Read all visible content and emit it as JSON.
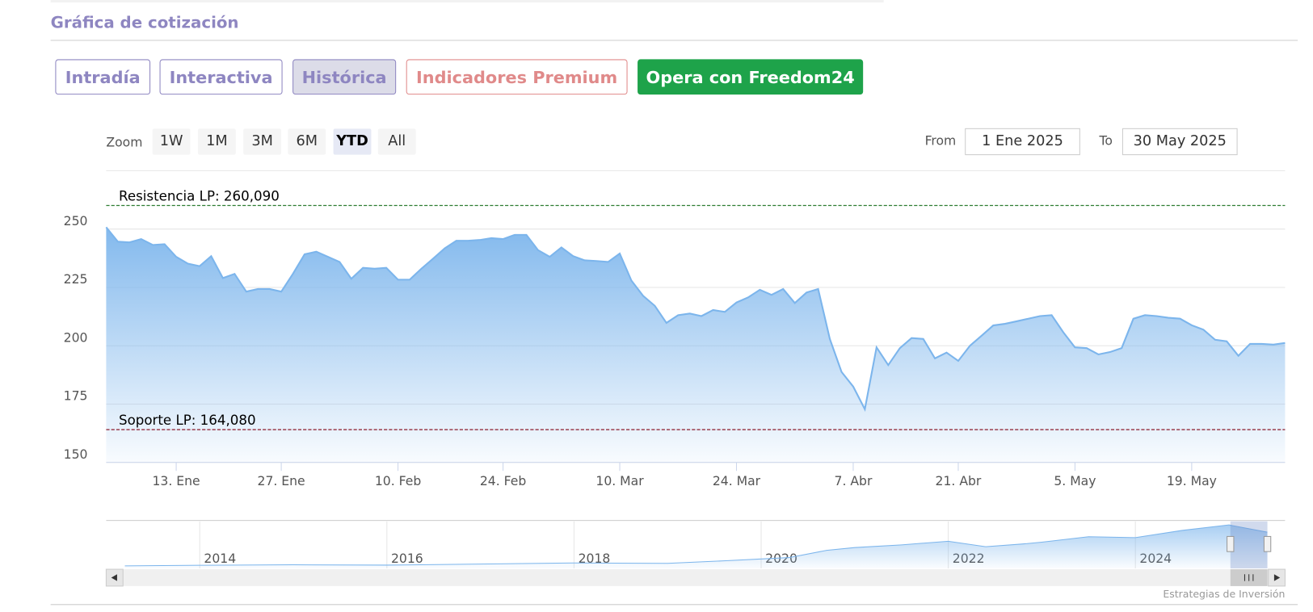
{
  "header": {
    "title": "Gráfica de cotización"
  },
  "tabs": [
    "Intradía",
    "Interactiva",
    "Histórica",
    "Indicadores Premium",
    "Opera con Freedom24"
  ],
  "selected_tab": 2,
  "zoom": {
    "label": "Zoom",
    "buttons": [
      "1W",
      "1M",
      "3M",
      "6M",
      "YTD",
      "All"
    ],
    "selected": 4
  },
  "range": {
    "from_label": "From",
    "from": "1 Ene 2025",
    "to_label": "To",
    "to": "30 May 2025"
  },
  "chart_data": {
    "type": "area",
    "color": "#7cb5ec",
    "x": [
      "2025-01-02",
      "2025-01-03",
      "2025-01-06",
      "2025-01-07",
      "2025-01-08",
      "2025-01-10",
      "2025-01-13",
      "2025-01-14",
      "2025-01-15",
      "2025-01-16",
      "2025-01-17",
      "2025-01-21",
      "2025-01-22",
      "2025-01-23",
      "2025-01-24",
      "2025-01-27",
      "2025-01-28",
      "2025-01-29",
      "2025-01-30",
      "2025-01-31",
      "2025-02-03",
      "2025-02-04",
      "2025-02-05",
      "2025-02-06",
      "2025-02-07",
      "2025-02-10",
      "2025-02-11",
      "2025-02-12",
      "2025-02-13",
      "2025-02-14",
      "2025-02-18",
      "2025-02-19",
      "2025-02-20",
      "2025-02-21",
      "2025-02-24",
      "2025-02-25",
      "2025-02-26",
      "2025-02-27",
      "2025-02-28",
      "2025-03-03",
      "2025-03-04",
      "2025-03-05",
      "2025-03-06",
      "2025-03-07",
      "2025-03-10",
      "2025-03-11",
      "2025-03-12",
      "2025-03-13",
      "2025-03-14",
      "2025-03-17",
      "2025-03-18",
      "2025-03-19",
      "2025-03-20",
      "2025-03-21",
      "2025-03-24",
      "2025-03-25",
      "2025-03-26",
      "2025-03-27",
      "2025-03-28",
      "2025-03-31",
      "2025-04-01",
      "2025-04-02",
      "2025-04-03",
      "2025-04-04",
      "2025-04-07",
      "2025-04-08",
      "2025-04-09",
      "2025-04-10",
      "2025-04-11",
      "2025-04-14",
      "2025-04-15",
      "2025-04-16",
      "2025-04-17",
      "2025-04-21",
      "2025-04-22",
      "2025-04-23",
      "2025-04-24",
      "2025-04-25",
      "2025-04-28",
      "2025-04-29",
      "2025-04-30",
      "2025-05-01",
      "2025-05-02",
      "2025-05-05",
      "2025-05-06",
      "2025-05-07",
      "2025-05-08",
      "2025-05-09",
      "2025-05-12",
      "2025-05-13",
      "2025-05-14",
      "2025-05-15",
      "2025-05-16",
      "2025-05-19",
      "2025-05-20",
      "2025-05-21",
      "2025-05-22",
      "2025-05-23",
      "2025-05-27",
      "2025-05-28",
      "2025-05-29",
      "2025-05-30"
    ],
    "values": [
      250.8,
      244.6,
      244.3,
      245.7,
      243.2,
      243.5,
      238.1,
      235.2,
      234.1,
      238.4,
      229,
      230.8,
      223.2,
      224.3,
      224.3,
      223.2,
      230.8,
      239.2,
      240.3,
      238.1,
      235.9,
      228.7,
      233.4,
      233,
      233.4,
      228.3,
      228.3,
      233,
      237.3,
      241.7,
      245,
      245,
      245.3,
      246.1,
      245.7,
      247.5,
      247.5,
      241,
      238.1,
      242.1,
      238.4,
      236.6,
      236.3,
      235.9,
      239.5,
      227.9,
      221.4,
      217.1,
      209.8,
      213.1,
      213.8,
      212.7,
      215.3,
      214.5,
      218.5,
      220.7,
      224,
      221.8,
      224.3,
      218.3,
      222.8,
      224.3,
      202.9,
      188.8,
      182.5,
      172.8,
      199.3,
      191.7,
      199,
      203.3,
      202.9,
      194.6,
      197.1,
      193.5,
      200,
      204.3,
      208.7,
      209.4,
      210.5,
      211.6,
      212.7,
      213.1,
      205.8,
      199.3,
      199,
      196.3,
      197.3,
      199,
      211.6,
      213.1,
      212.7,
      212,
      211.6,
      208.8,
      206.9,
      202.6,
      201.9,
      195.7,
      200.8,
      200.8,
      200.5,
      201.2
    ],
    "ylim": [
      150,
      275
    ],
    "yticks": [
      150,
      175,
      200,
      225,
      250
    ],
    "grid": true,
    "xticks": [
      {
        "value": "2025-01-13",
        "label": "13. Ene"
      },
      {
        "value": "2025-01-27",
        "label": "27. Ene"
      },
      {
        "value": "2025-02-10",
        "label": "10. Feb"
      },
      {
        "value": "2025-02-24",
        "label": "24. Feb"
      },
      {
        "value": "2025-03-10",
        "label": "10. Mar"
      },
      {
        "value": "2025-03-24",
        "label": "24. Mar"
      },
      {
        "value": "2025-04-07",
        "label": "7. Abr"
      },
      {
        "value": "2025-04-21",
        "label": "21. Abr"
      },
      {
        "value": "2025-05-05",
        "label": "5. May"
      },
      {
        "value": "2025-05-19",
        "label": "19. May"
      }
    ],
    "plot_lines": [
      {
        "value": 260.09,
        "label": "Resistencia LP: 260,090",
        "color": "#2e7d32"
      },
      {
        "value": 164.08,
        "label": "Soporte LP: 164,080",
        "color": "#8b1a2b"
      }
    ]
  },
  "navigator": {
    "xlim": [
      2013,
      2025.6
    ],
    "ylim": [
      0,
      260
    ],
    "xticks": [
      2014,
      2016,
      2018,
      2020,
      2022,
      2024
    ],
    "x": [
      2013.2,
      2014,
      2015,
      2016,
      2017,
      2018,
      2019,
      2019.6,
      2020.3,
      2020.7,
      2021,
      2021.5,
      2022,
      2022.4,
      2022.8,
      2023,
      2023.5,
      2024,
      2024.5,
      2025,
      2025.41
    ],
    "values": [
      14,
      17,
      20,
      18,
      24,
      30,
      28,
      42,
      60,
      100,
      115,
      130,
      150,
      120,
      135,
      145,
      175,
      170,
      210,
      240,
      200
    ]
  },
  "credits": "Estrategias de Inversión"
}
